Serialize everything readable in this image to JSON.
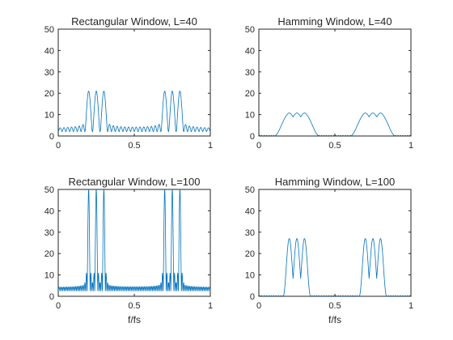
{
  "figure": {
    "background": "#ffffff",
    "line_color": "#0072bd",
    "axis_color": "#262626"
  },
  "chart_data": [
    {
      "type": "line",
      "title": "Rectangular Window, L=40",
      "xlabel": "",
      "ylabel": "",
      "xlim": [
        0,
        1
      ],
      "ylim": [
        0,
        50
      ],
      "xticks": [
        "0",
        "0.5",
        "1"
      ],
      "yticks": [
        "0",
        "10",
        "20",
        "30",
        "40",
        "50"
      ],
      "grid": false,
      "window": "rectangular",
      "L": 40,
      "series": [
        {
          "peaks_x": [
            0.2,
            0.25,
            0.3,
            0.7,
            0.75,
            0.8
          ],
          "peak_y": 21,
          "mainlobe_half_width": 0.025,
          "sidelobe_level": 3,
          "floor": 2
        }
      ]
    },
    {
      "type": "line",
      "title": "Hamming Window, L=40",
      "xlabel": "",
      "ylabel": "",
      "xlim": [
        0,
        1
      ],
      "ylim": [
        0,
        50
      ],
      "xticks": [
        "0",
        "0.5",
        "1"
      ],
      "yticks": [
        "0",
        "10",
        "20",
        "30",
        "40",
        "50"
      ],
      "grid": false,
      "window": "hamming",
      "L": 40,
      "series": [
        {
          "peaks_x": [
            0.2,
            0.25,
            0.3,
            0.7,
            0.75,
            0.8
          ],
          "peak_y": 10.8,
          "mainlobe_half_width": 0.05,
          "sidelobe_level": 0.05,
          "floor": 0
        }
      ]
    },
    {
      "type": "line",
      "title": "Rectangular Window, L=100",
      "xlabel": "f/fs",
      "ylabel": "",
      "xlim": [
        0,
        1
      ],
      "ylim": [
        0,
        50
      ],
      "xticks": [
        "0",
        "0.5",
        "1"
      ],
      "yticks": [
        "0",
        "10",
        "20",
        "30",
        "40",
        "50"
      ],
      "grid": false,
      "window": "rectangular",
      "L": 100,
      "series": [
        {
          "peaks_x": [
            0.2,
            0.25,
            0.3,
            0.7,
            0.75,
            0.8
          ],
          "peak_y": 50,
          "mainlobe_half_width": 0.01,
          "sidelobe_level": 4,
          "floor": 2.5
        }
      ]
    },
    {
      "type": "line",
      "title": "Hamming Window, L=100",
      "xlabel": "f/fs",
      "ylabel": "",
      "xlim": [
        0,
        1
      ],
      "ylim": [
        0,
        50
      ],
      "xticks": [
        "0",
        "0.5",
        "1"
      ],
      "yticks": [
        "0",
        "10",
        "20",
        "30",
        "40",
        "50"
      ],
      "grid": false,
      "window": "hamming",
      "L": 100,
      "series": [
        {
          "peaks_x": [
            0.2,
            0.25,
            0.3,
            0.7,
            0.75,
            0.8
          ],
          "peak_y": 27,
          "mainlobe_half_width": 0.02,
          "sidelobe_level": 0.1,
          "floor": 0
        }
      ]
    }
  ]
}
